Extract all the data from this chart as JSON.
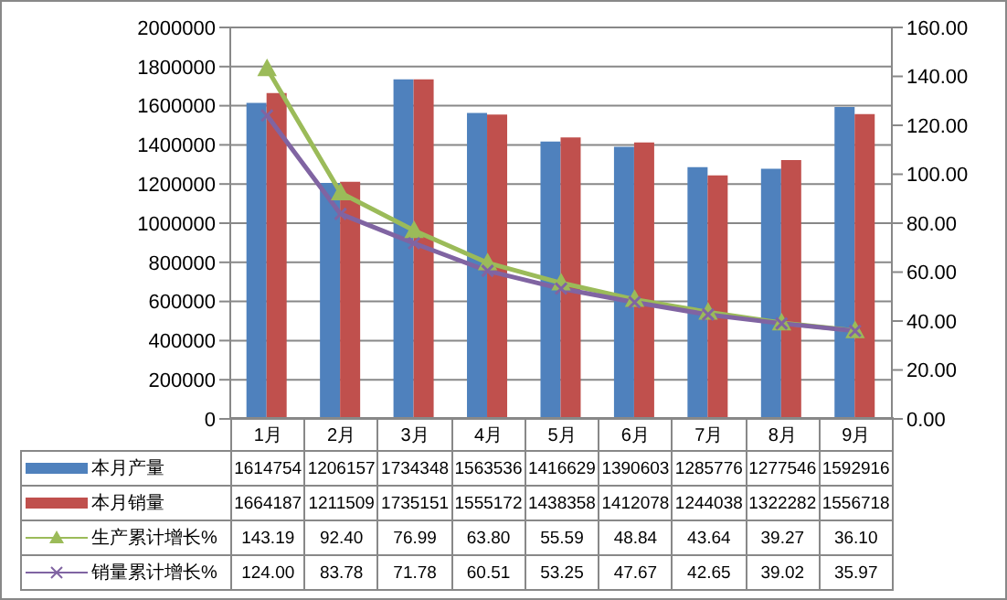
{
  "chart_data": {
    "type": "bar",
    "categories": [
      "1月",
      "2月",
      "3月",
      "4月",
      "5月",
      "6月",
      "7月",
      "8月",
      "9月"
    ],
    "series": [
      {
        "name": "本月产量",
        "color": "#4f81bd",
        "values": [
          1614754,
          1206157,
          1734348,
          1563536,
          1416629,
          1390603,
          1285776,
          1277546,
          1592916
        ],
        "value_labels": [
          "1614754",
          "1206157",
          "1734348",
          "1563536",
          "1416629",
          "1390603",
          "1285776",
          "1277546",
          "1592916"
        ]
      },
      {
        "name": "本月销量",
        "color": "#c0504d",
        "values": [
          1664187,
          1211509,
          1735151,
          1555172,
          1438358,
          1412078,
          1244038,
          1322282,
          1556718
        ],
        "value_labels": [
          "1664187",
          "1211509",
          "1735151",
          "1555172",
          "1438358",
          "1412078",
          "1244038",
          "1322282",
          "1556718"
        ]
      },
      {
        "name": "生产累计增长%",
        "type": "line",
        "axis": "y2",
        "marker": "triangle",
        "color": "#9bbb59",
        "values": [
          143.19,
          92.4,
          76.99,
          63.8,
          55.59,
          48.84,
          43.64,
          39.27,
          36.1
        ],
        "value_labels": [
          "143.19",
          "92.40",
          "76.99",
          "63.80",
          "55.59",
          "48.84",
          "43.64",
          "39.27",
          "36.10"
        ]
      },
      {
        "name": "销量累计增长%",
        "type": "line",
        "axis": "y2",
        "marker": "cross",
        "color": "#8064a2",
        "values": [
          124.0,
          83.78,
          71.78,
          60.51,
          53.25,
          47.67,
          42.65,
          39.02,
          35.97
        ],
        "value_labels": [
          "124.00",
          "83.78",
          "71.78",
          "60.51",
          "53.25",
          "47.67",
          "42.65",
          "39.02",
          "35.97"
        ]
      }
    ],
    "ylim": [
      0,
      2000000
    ],
    "yticks": [
      0,
      200000,
      400000,
      600000,
      800000,
      1000000,
      1200000,
      1400000,
      1600000,
      1800000,
      2000000
    ],
    "y2lim": [
      0,
      160
    ],
    "y2ticks": [
      {
        "value": 0,
        "label": "0.00"
      },
      {
        "value": 20,
        "label": "20.00"
      },
      {
        "value": 40,
        "label": "40.00"
      },
      {
        "value": 60,
        "label": "60.00"
      },
      {
        "value": 80,
        "label": "80.00"
      },
      {
        "value": 100,
        "label": "100.00"
      },
      {
        "value": 120,
        "label": "120.00"
      },
      {
        "value": 140,
        "label": "140.00"
      },
      {
        "value": 160,
        "label": "160.00"
      }
    ],
    "grid": "y",
    "legend": "bottom"
  }
}
